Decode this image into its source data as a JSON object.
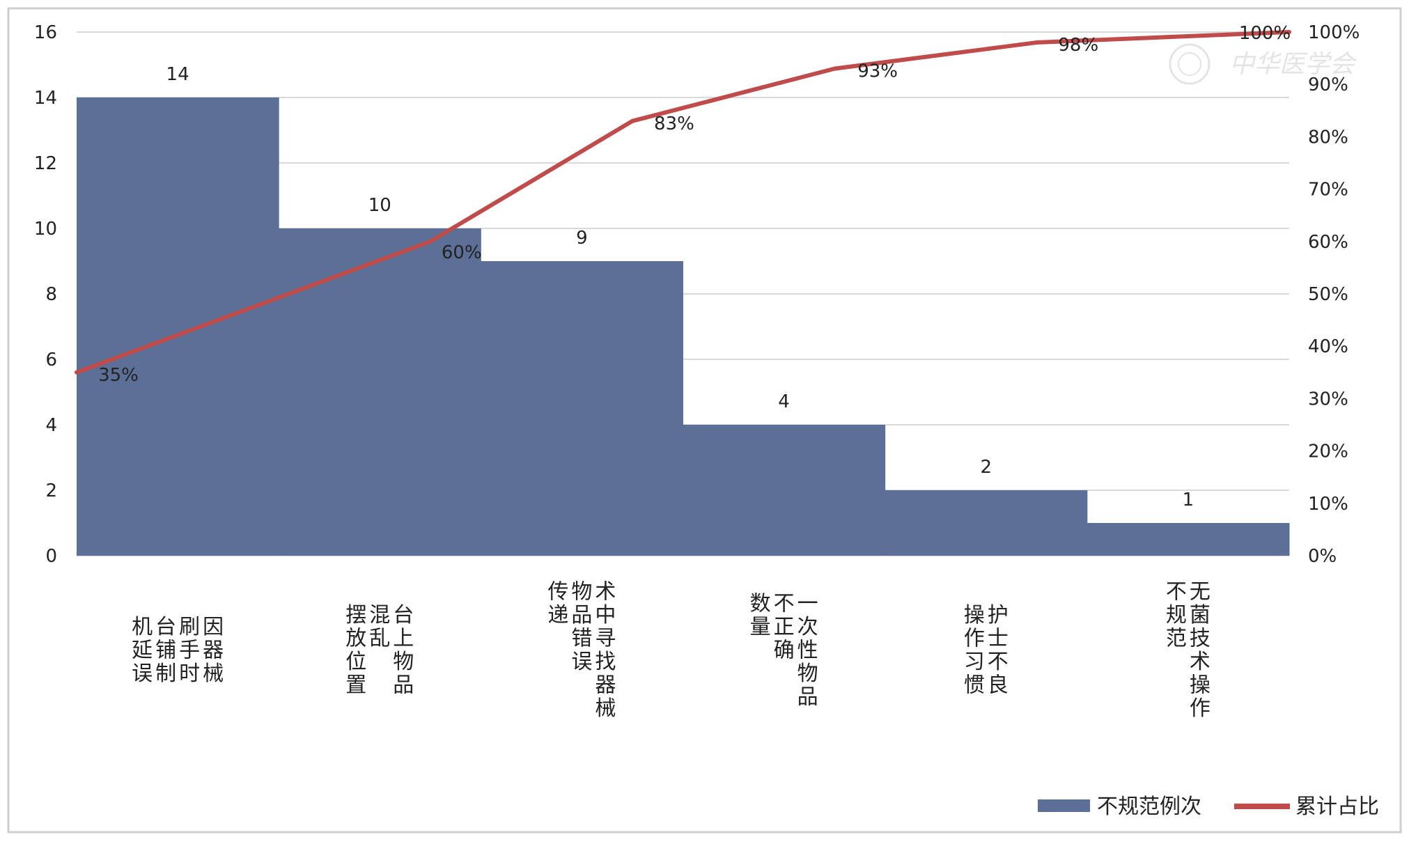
{
  "chart_data": {
    "type": "bar",
    "title": "",
    "xlabel": "",
    "ylabel": "",
    "categories": [
      [
        "因器械",
        "刷手时",
        "台铺制",
        "机延误"
      ],
      [
        "台上物品",
        "混乱",
        "摆放位置"
      ],
      [
        "术中寻找器械",
        "物品错误",
        "传递"
      ],
      [
        "一次性物品",
        "不正确",
        "数量"
      ],
      [
        "护士不良",
        "操作习惯"
      ],
      [
        "无菌技术操作",
        "不规范"
      ]
    ],
    "series": [
      {
        "name": "不规范例次",
        "type": "bar",
        "color": "#5c6f96",
        "values": [
          14,
          10,
          9,
          4,
          2,
          1
        ],
        "labels": [
          "14",
          "10",
          "9",
          "4",
          "2",
          "1"
        ]
      },
      {
        "name": "累计占比",
        "type": "line",
        "color": "#bf4b4b",
        "values": [
          35,
          60,
          83,
          93,
          98,
          100
        ],
        "labels": [
          "35%",
          "60%",
          "83%",
          "93%",
          "98%",
          "100%"
        ]
      }
    ],
    "y_left": {
      "range": [
        0,
        16
      ],
      "ticks": [
        "0",
        "2",
        "4",
        "6",
        "8",
        "10",
        "12",
        "14",
        "16"
      ]
    },
    "y_right": {
      "range": [
        0,
        100
      ],
      "ticks": [
        "0%",
        "10%",
        "20%",
        "30%",
        "40%",
        "50%",
        "60%",
        "70%",
        "80%",
        "90%",
        "100%"
      ]
    },
    "grid": true,
    "legend": "bottom-right"
  },
  "watermark": {
    "text": "中华医学会"
  }
}
